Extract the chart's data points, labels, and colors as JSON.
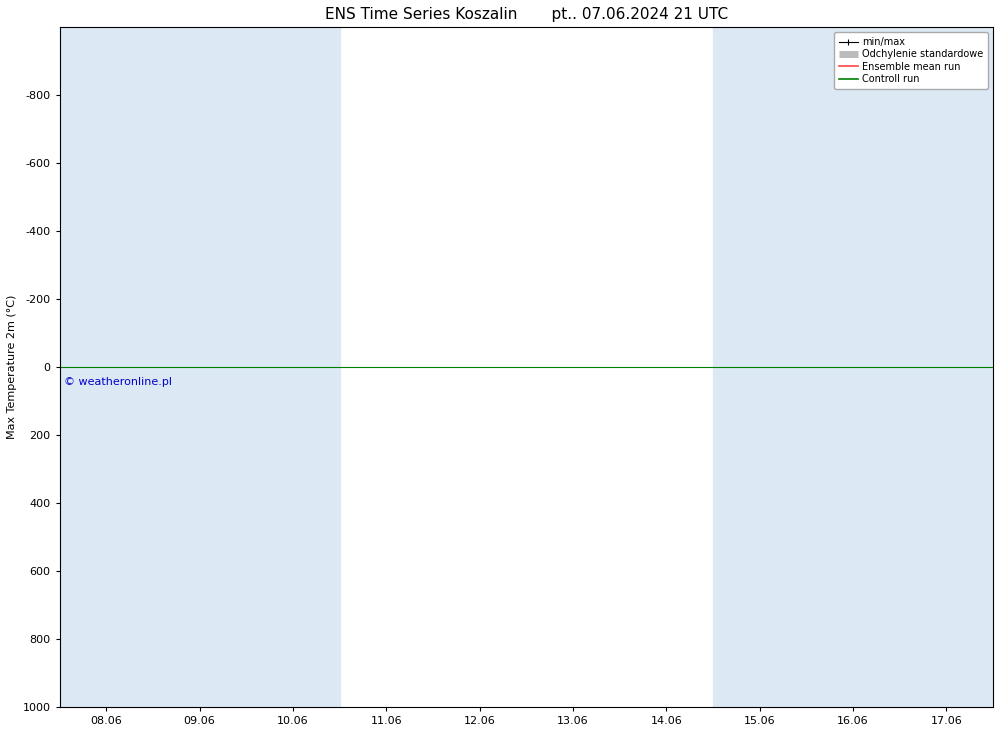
{
  "title": "ENS Time Series Koszalin       pt.. 07.06.2024 21 UTC",
  "ylabel": "Max Temperature 2m (°C)",
  "yticks": [
    -800,
    -600,
    -400,
    -200,
    0,
    200,
    400,
    600,
    800,
    1000
  ],
  "ylim_top": -1000,
  "ylim_bottom": 1000,
  "xtick_labels": [
    "08.06",
    "09.06",
    "10.06",
    "11.06",
    "12.06",
    "13.06",
    "14.06",
    "15.06",
    "16.06",
    "17.06"
  ],
  "xtick_positions": [
    0,
    1,
    2,
    3,
    4,
    5,
    6,
    7,
    8,
    9
  ],
  "shaded_columns": [
    0,
    1,
    2,
    7,
    8,
    9
  ],
  "shaded_color": "#dce9f5",
  "background_color": "#ffffff",
  "plot_bg_color": "#ffffff",
  "hline_y": 0,
  "hline_color": "#008000",
  "hline_lw": 0.8,
  "copyright_text": "© weatheronline.pl",
  "copyright_color": "#0000cc",
  "legend_entries": [
    "min/max",
    "Odchylenie standardowe",
    "Ensemble mean run",
    "Controll run"
  ],
  "legend_line_colors": [
    "#000000",
    "#bbbbbb",
    "#ff4444",
    "#008000"
  ],
  "title_fontsize": 11,
  "axis_fontsize": 8,
  "tick_fontsize": 8,
  "figsize": [
    10.0,
    7.33
  ],
  "dpi": 100,
  "spine_color": "#000000"
}
